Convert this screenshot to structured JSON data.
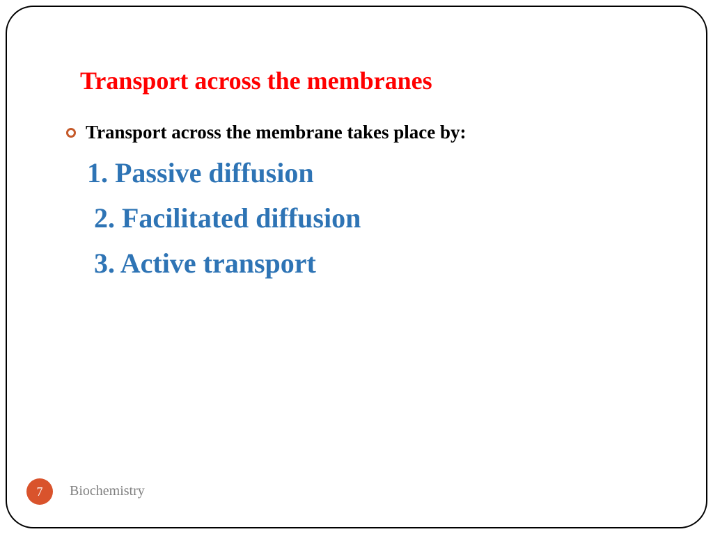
{
  "slide": {
    "title": "Transport across the membranes",
    "bullet_text": "Transport across the membrane takes place by:",
    "items": [
      "1. Passive diffusion",
      "2. Facilitated diffusion",
      "3. Active transport"
    ],
    "page_number": "7",
    "footer": "Biochemistry"
  },
  "colors": {
    "title_color": "#ff0000",
    "item_color": "#2e74b5",
    "badge_bg": "#d9532c",
    "bullet_border": "#c55a2a",
    "footer_color": "#7f7f7f",
    "frame_border": "#000000",
    "body_text": "#000000"
  },
  "typography": {
    "title_size": 36,
    "bullet_size": 27,
    "item_size": 40,
    "footer_size": 20,
    "font_family": "Georgia, serif"
  }
}
